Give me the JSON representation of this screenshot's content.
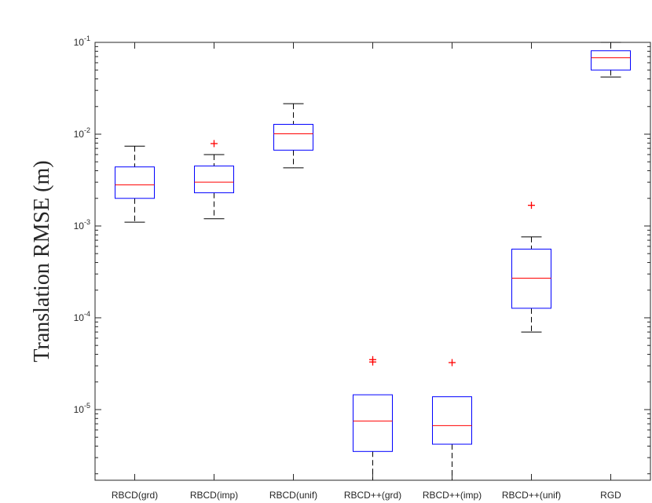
{
  "chart_data": {
    "type": "boxplot",
    "ylabel": "Translation RMSE (m)",
    "yscale": "log",
    "ylim": [
      1.7e-06,
      0.1
    ],
    "yticks": [
      {
        "value": 0.1,
        "base": "10",
        "exp": "-1"
      },
      {
        "value": 0.01,
        "base": "10",
        "exp": "-2"
      },
      {
        "value": 0.001,
        "base": "10",
        "exp": "-3"
      },
      {
        "value": 0.0001,
        "base": "10",
        "exp": "-4"
      },
      {
        "value": 1e-05,
        "base": "10",
        "exp": "-5"
      }
    ],
    "categories": [
      "RBCD(grd)",
      "RBCD(imp)",
      "RBCD(unif)",
      "RBCD++(grd)",
      "RBCD++(imp)",
      "RBCD++(unif)",
      "RGD"
    ],
    "boxes": [
      {
        "category": "RBCD(grd)",
        "whisker_low": 0.0011,
        "q1": 0.002,
        "median": 0.0028,
        "q3": 0.0044,
        "whisker_high": 0.0074,
        "outliers": []
      },
      {
        "category": "RBCD(imp)",
        "whisker_low": 0.0012,
        "q1": 0.0023,
        "median": 0.003,
        "q3": 0.0045,
        "whisker_high": 0.006,
        "outliers": [
          0.0079
        ]
      },
      {
        "category": "RBCD(unif)",
        "whisker_low": 0.0043,
        "q1": 0.0067,
        "median": 0.0101,
        "q3": 0.0128,
        "whisker_high": 0.0215,
        "outliers": []
      },
      {
        "category": "RBCD++(grd)",
        "whisker_low": 1.7e-06,
        "q1": 3.5e-06,
        "median": 7.5e-06,
        "q3": 1.45e-05,
        "whisker_high": 1.45e-05,
        "outliers": [
          3.5e-05,
          3.3e-05
        ]
      },
      {
        "category": "RBCD++(imp)",
        "whisker_low": 1.7e-06,
        "q1": 4.2e-06,
        "median": 6.7e-06,
        "q3": 1.38e-05,
        "whisker_high": 1.38e-05,
        "outliers": [
          3.25e-05
        ]
      },
      {
        "category": "RBCD++(unif)",
        "whisker_low": 7e-05,
        "q1": 0.000127,
        "median": 0.00027,
        "q3": 0.00056,
        "whisker_high": 0.00076,
        "outliers": [
          0.00168
        ]
      },
      {
        "category": "RGD",
        "whisker_low": 0.042,
        "q1": 0.05,
        "median": 0.068,
        "q3": 0.081,
        "whisker_high": 0.1,
        "outliers": []
      }
    ],
    "colors": {
      "box": "#0000ff",
      "median": "#ff0000",
      "whisker": "#000000",
      "outlier": "#ff0000",
      "axis": "#262626"
    },
    "grid": false,
    "legend": "none"
  }
}
